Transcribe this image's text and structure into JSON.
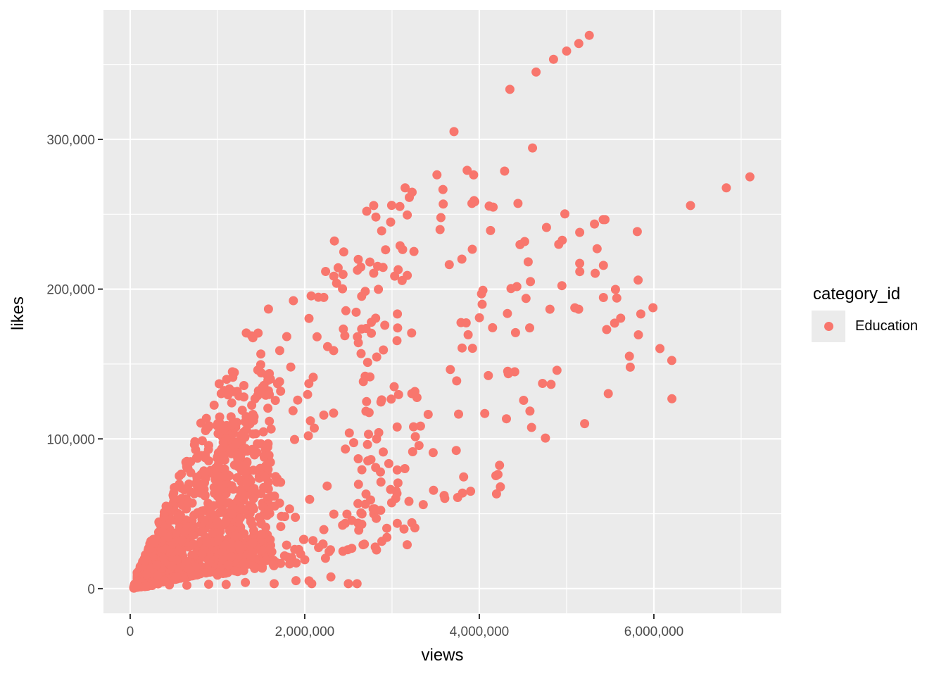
{
  "chart_data": {
    "type": "scatter",
    "title": "",
    "xlabel": "views",
    "ylabel": "likes",
    "x_domain": [
      -306000,
      7460000
    ],
    "y_domain": [
      -16500,
      386500
    ],
    "x_ticks": [
      {
        "v": 0,
        "label": "0"
      },
      {
        "v": 2000000,
        "label": "2,000,000"
      },
      {
        "v": 4000000,
        "label": "4,000,000"
      },
      {
        "v": 6000000,
        "label": "6,000,000"
      }
    ],
    "x_minor_ticks": [
      1000000,
      3000000,
      5000000,
      7000000
    ],
    "y_ticks": [
      {
        "v": 0,
        "label": "0"
      },
      {
        "v": 100000,
        "label": "100,000"
      },
      {
        "v": 200000,
        "label": "200,000"
      },
      {
        "v": 300000,
        "label": "300,000"
      }
    ],
    "y_minor_ticks": [
      50000,
      150000,
      250000,
      350000
    ],
    "legend": {
      "title": "category_id",
      "items": [
        {
          "label": "Education",
          "color": "#F8766D"
        }
      ]
    },
    "series": [
      {
        "name": "Education",
        "color": "#F8766D"
      }
    ],
    "point_radius": 6.5,
    "seed": 20240917,
    "ratio_cap": {
      "a": 0.15,
      "b": 2e-08
    },
    "clusters": [
      {
        "n": 1150,
        "x_min": 80000,
        "x_max": 1600000,
        "x_pow": 1.6,
        "r_min": 0.012,
        "r_max": 0.135,
        "r_pow": 2.2
      },
      {
        "n": 300,
        "x_min": 1000000,
        "x_max": 3300000,
        "x_pow": 1.9,
        "r_min": 0.009,
        "r_max": 0.1,
        "r_pow": 1.9
      },
      {
        "n": 95,
        "x_min": 2600000,
        "x_max": 4700000,
        "x_pow": 1.4,
        "r_min": 0.015,
        "r_max": 0.085,
        "r_pow": 1.5
      },
      {
        "n": 30,
        "x_min": 4300000,
        "x_max": 6300000,
        "x_pow": 1.2,
        "r_min": 0.02,
        "r_max": 0.062,
        "r_pow": 1.2
      },
      {
        "n": 130,
        "x_min": 40000,
        "x_max": 400000,
        "x_pow": 1.2,
        "r_min": 0.008,
        "r_max": 0.06,
        "r_pow": 1.5
      }
    ],
    "notable_points": [
      [
        5260000,
        369500
      ],
      [
        5140000,
        364000
      ],
      [
        5000000,
        359000
      ],
      [
        4850000,
        353500
      ],
      [
        4650000,
        345000
      ],
      [
        4350000,
        333400
      ],
      [
        3710000,
        305200
      ],
      [
        4610000,
        294300
      ],
      [
        4290000,
        278800
      ],
      [
        3940000,
        259100
      ],
      [
        3560000,
        247800
      ],
      [
        3550000,
        239800
      ],
      [
        3150000,
        267600
      ],
      [
        2790000,
        255800
      ],
      [
        2710000,
        252000
      ],
      [
        7100000,
        275000
      ],
      [
        6830000,
        267600
      ],
      [
        6420000,
        255800
      ],
      [
        5440000,
        246400
      ],
      [
        5810000,
        238400
      ],
      [
        5420000,
        246400
      ],
      [
        5320000,
        243500
      ],
      [
        4980000,
        250200
      ],
      [
        4770000,
        241200
      ],
      [
        5150000,
        237900
      ],
      [
        4520000,
        231800
      ],
      [
        4910000,
        229900
      ],
      [
        5150000,
        217200
      ],
      [
        4560000,
        218200
      ],
      [
        4430000,
        201700
      ],
      [
        3920000,
        226600
      ],
      [
        5820000,
        206000
      ],
      [
        5560000,
        199800
      ],
      [
        5990000,
        187600
      ],
      [
        5850000,
        183400
      ],
      [
        5620000,
        180600
      ],
      [
        5550000,
        177300
      ],
      [
        6070000,
        160300
      ],
      [
        5720000,
        155200
      ],
      [
        1870000,
        192300
      ],
      [
        1330000,
        170700
      ],
      [
        1020000,
        136800
      ],
      [
        810000,
        110500
      ],
      [
        3230000,
        264700
      ],
      [
        3090000,
        255200
      ]
    ],
    "straggler_points": [
      [
        450000,
        2500
      ],
      [
        650000,
        2200
      ],
      [
        900000,
        2900
      ],
      [
        1100000,
        2800
      ],
      [
        1320000,
        4100
      ],
      [
        1650000,
        3300
      ],
      [
        1900000,
        5300
      ],
      [
        2050000,
        5200
      ],
      [
        2080000,
        3300
      ],
      [
        2300000,
        7800
      ],
      [
        2500000,
        3300
      ],
      [
        2600000,
        3300
      ]
    ],
    "colors": {
      "point": "#F8766D",
      "panel": "#EBEBEB",
      "grid": "#FFFFFF",
      "tick_label": "#4D4D4D",
      "tick_mark": "#333333",
      "title": "#000000",
      "background": "#FFFFFF"
    }
  }
}
